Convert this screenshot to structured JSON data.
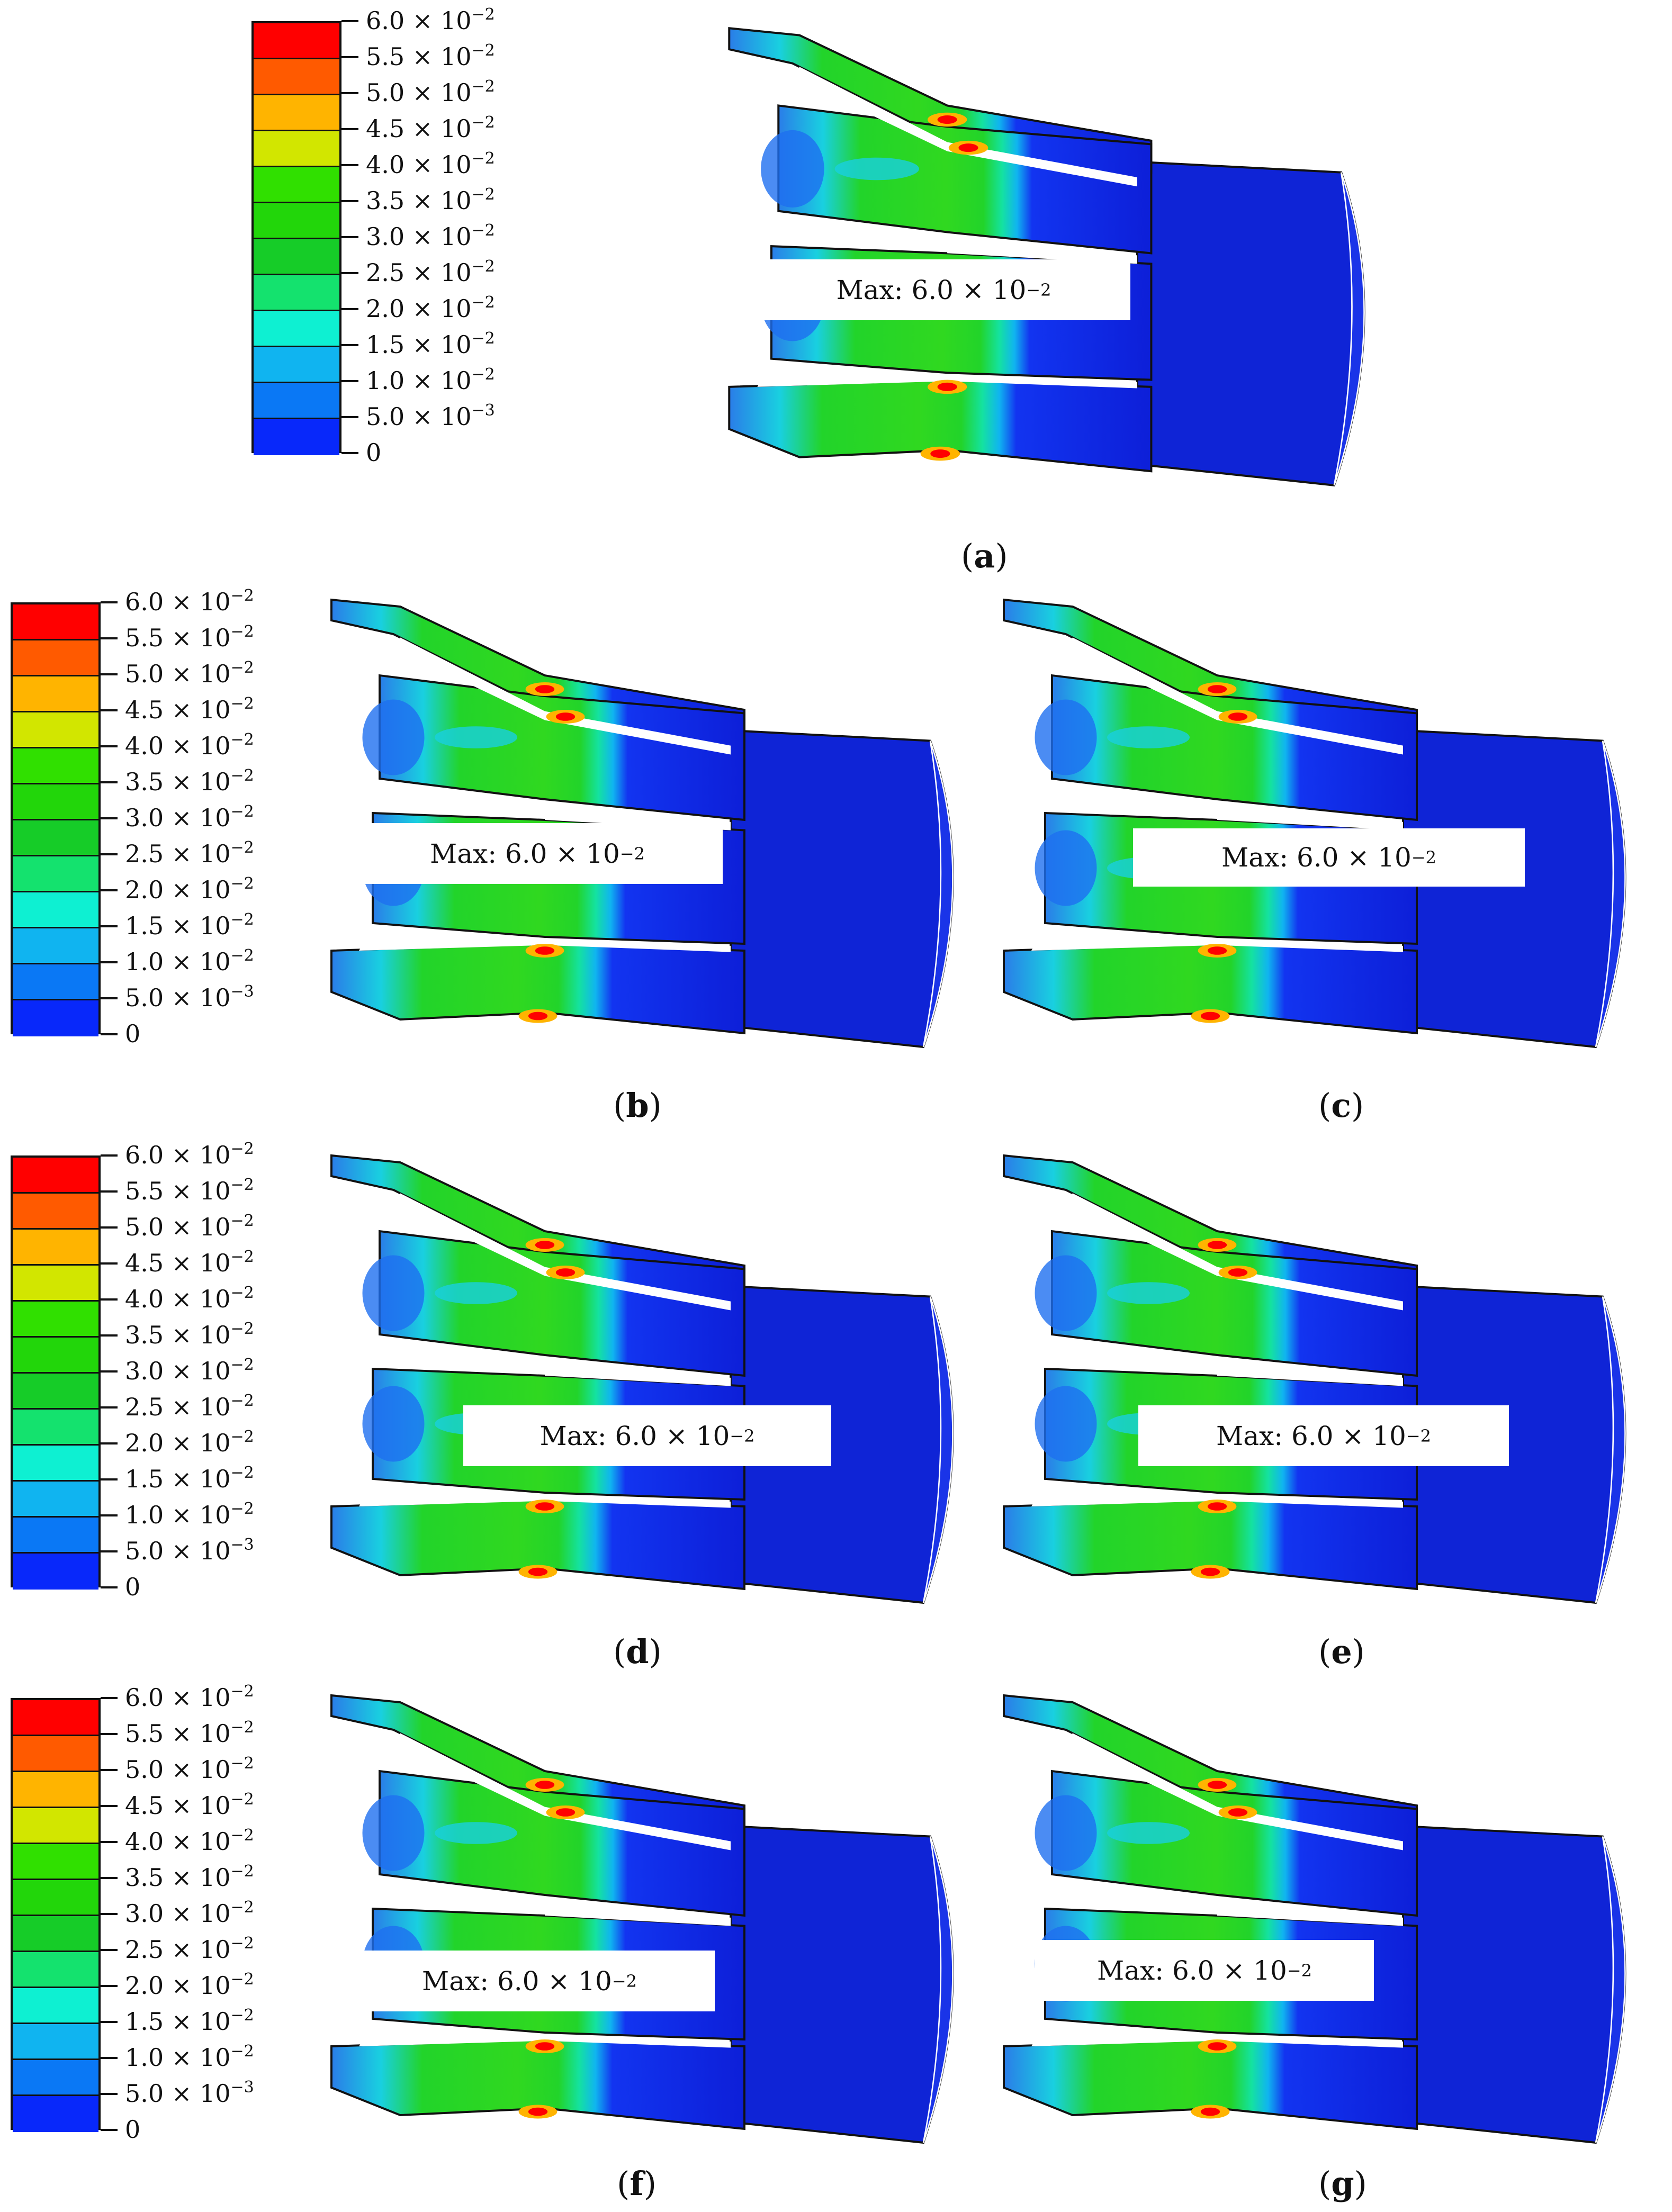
{
  "legend": {
    "colors": [
      "#ff0000",
      "#ff5a00",
      "#ffb400",
      "#d2e600",
      "#30e000",
      "#22d60a",
      "#16cc28",
      "#14e26e",
      "#0ef0d2",
      "#10b4f0",
      "#0a78f5",
      "#0828fa"
    ],
    "labels": [
      {
        "base": "6.0 × 10",
        "exp": "−2"
      },
      {
        "base": "5.5 × 10",
        "exp": "−2"
      },
      {
        "base": "5.0 × 10",
        "exp": "−2"
      },
      {
        "base": "4.5 × 10",
        "exp": "−2"
      },
      {
        "base": "4.0 × 10",
        "exp": "−2"
      },
      {
        "base": "3.5 × 10",
        "exp": "−2"
      },
      {
        "base": "3.0 × 10",
        "exp": "−2"
      },
      {
        "base": "2.5 × 10",
        "exp": "−2"
      },
      {
        "base": "2.0 × 10",
        "exp": "−2"
      },
      {
        "base": "1.5 × 10",
        "exp": "−2"
      },
      {
        "base": "1.0 × 10",
        "exp": "−2"
      },
      {
        "base": "5.0 × 10",
        "exp": "−3"
      },
      {
        "base": "0",
        "exp": ""
      }
    ]
  },
  "max_label": {
    "prefix": "Max: 6.0 × 10",
    "exp": "−2"
  },
  "panels": [
    {
      "id": "a",
      "caption": "a"
    },
    {
      "id": "b",
      "caption": "b"
    },
    {
      "id": "c",
      "caption": "c"
    },
    {
      "id": "d",
      "caption": "d"
    },
    {
      "id": "e",
      "caption": "e"
    },
    {
      "id": "f",
      "caption": "f"
    },
    {
      "id": "g",
      "caption": "g"
    }
  ]
}
